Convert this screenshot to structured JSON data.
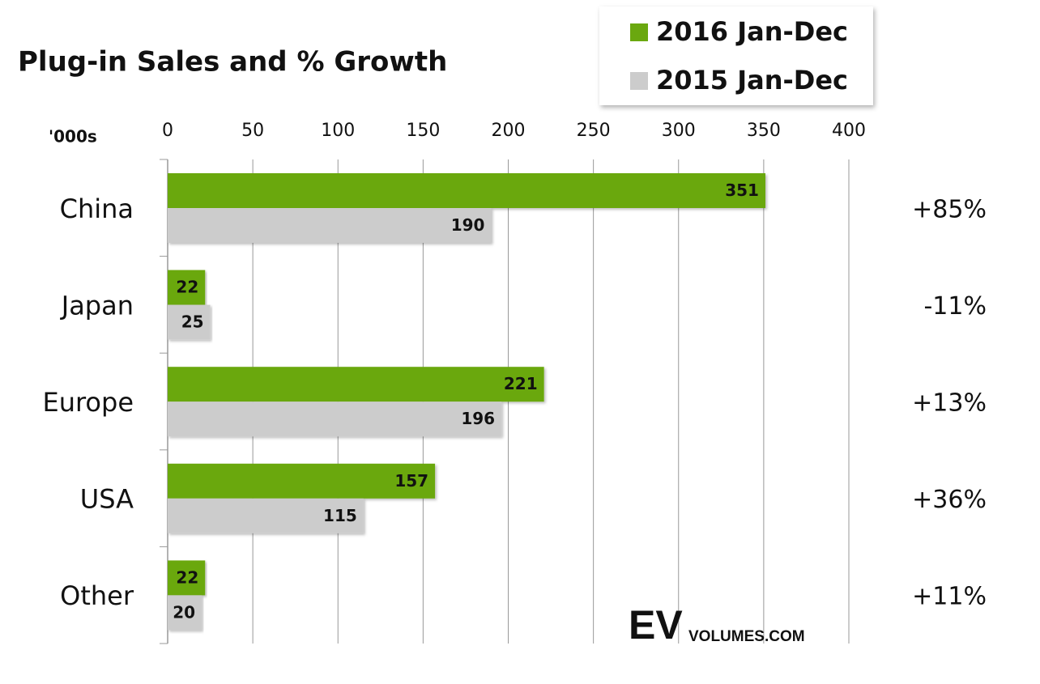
{
  "chart_data": {
    "type": "hbar",
    "title": "Plug-in Sales and % Growth",
    "unit_label": "'000s",
    "categories": [
      "China",
      "Japan",
      "Europe",
      "USA",
      "Other"
    ],
    "series": [
      {
        "name": "2016 Jan-Dec",
        "color": "#6aa80f",
        "label_color": "#ffffff",
        "values": [
          351,
          22,
          221,
          157,
          22
        ]
      },
      {
        "name": "2015 Jan-Dec",
        "color": "#cccccc",
        "label_color": "#111111",
        "values": [
          190,
          25,
          196,
          115,
          20
        ]
      }
    ],
    "annotations": [
      "+85%",
      "-11%",
      "+13%",
      "+36%",
      "+11%"
    ],
    "annotation_colors": [
      "#222222",
      "#e0302a",
      "#222222",
      "#222222",
      "#222222"
    ],
    "xlim": [
      0,
      400
    ],
    "xticks": [
      0,
      50,
      100,
      150,
      200,
      250,
      300,
      350,
      400
    ],
    "grid": true,
    "legend": "top-right",
    "logo": {
      "mark": "EV",
      "text": "VOLUMES.COM"
    }
  }
}
